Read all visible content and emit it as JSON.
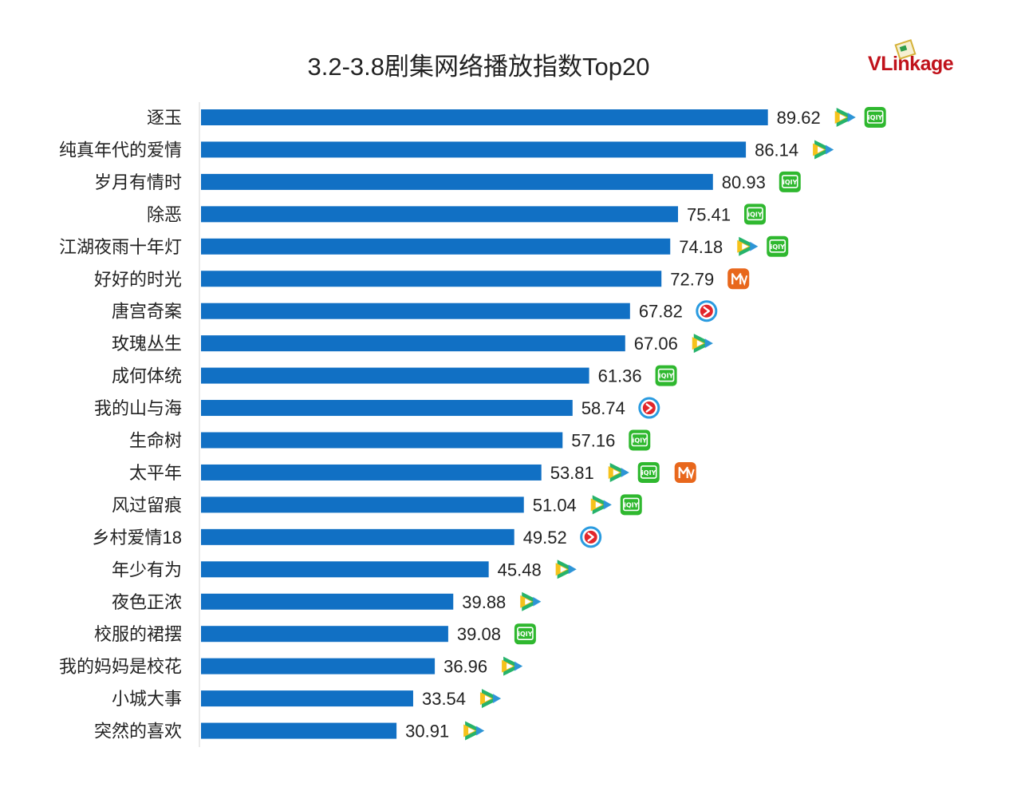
{
  "chart_data": {
    "type": "bar",
    "orientation": "horizontal",
    "title": "3.2-3.8剧集网络播放指数Top20",
    "categories": [
      "逐玉",
      "纯真年代的爱情",
      "岁月有情时",
      "除恶",
      "江湖夜雨十年灯",
      "好好的时光",
      "唐宫奇案",
      "玫瑰丛生",
      "成何体统",
      "我的山与海",
      "生命树",
      "太平年",
      "风过留痕",
      "乡村爱情18",
      "年少有为",
      "夜色正浓",
      "校服的裙摆",
      "我的妈妈是校花",
      "小城大事",
      "突然的喜欢"
    ],
    "values": [
      89.62,
      86.14,
      80.93,
      75.41,
      74.18,
      72.79,
      67.82,
      67.06,
      61.36,
      58.74,
      57.16,
      53.81,
      51.04,
      49.52,
      45.48,
      39.88,
      39.08,
      36.96,
      33.54,
      30.91
    ],
    "value_labels": [
      "89.62",
      "86.14",
      "80.93",
      "75.41",
      "74.18",
      "72.79",
      "67.82",
      "67.06",
      "61.36",
      "58.74",
      "57.16",
      "53.81",
      "51.04",
      "49.52",
      "45.48",
      "39.88",
      "39.08",
      "36.96",
      "33.54",
      "30.91"
    ],
    "platforms": [
      [
        "tencent-video-icon",
        "iqiyi-icon"
      ],
      [
        "tencent-video-icon"
      ],
      [
        "iqiyi-icon"
      ],
      [
        "iqiyi-icon"
      ],
      [
        "tencent-video-icon",
        "iqiyi-icon"
      ],
      [
        "mgtv-icon"
      ],
      [
        "youku-icon"
      ],
      [
        "tencent-video-icon"
      ],
      [
        "iqiyi-icon"
      ],
      [
        "youku-icon"
      ],
      [
        "iqiyi-icon"
      ],
      [
        "tencent-video-icon",
        "iqiyi-icon",
        "mgtv-icon"
      ],
      [
        "tencent-video-icon",
        "iqiyi-icon"
      ],
      [
        "youku-icon"
      ],
      [
        "tencent-video-icon"
      ],
      [
        "tencent-video-icon"
      ],
      [
        "iqiyi-icon"
      ],
      [
        "tencent-video-icon"
      ],
      [
        "tencent-video-icon"
      ],
      [
        "tencent-video-icon"
      ]
    ],
    "bar_color": "#1170c4",
    "grid": false,
    "legend": "none"
  },
  "logo": {
    "v": "V",
    "rest": "Linkage"
  },
  "icon_labels": {
    "iqiyi": "iQIY"
  },
  "colors": {
    "iqiyi": "#2fb82f",
    "mgtv": "#e8671c",
    "tencent_green": "#26b36b",
    "tencent_yellow": "#f6c21b",
    "tencent_blue": "#2f8fe8",
    "youku_red": "#e2262b",
    "youku_blue": "#2a9be0"
  }
}
